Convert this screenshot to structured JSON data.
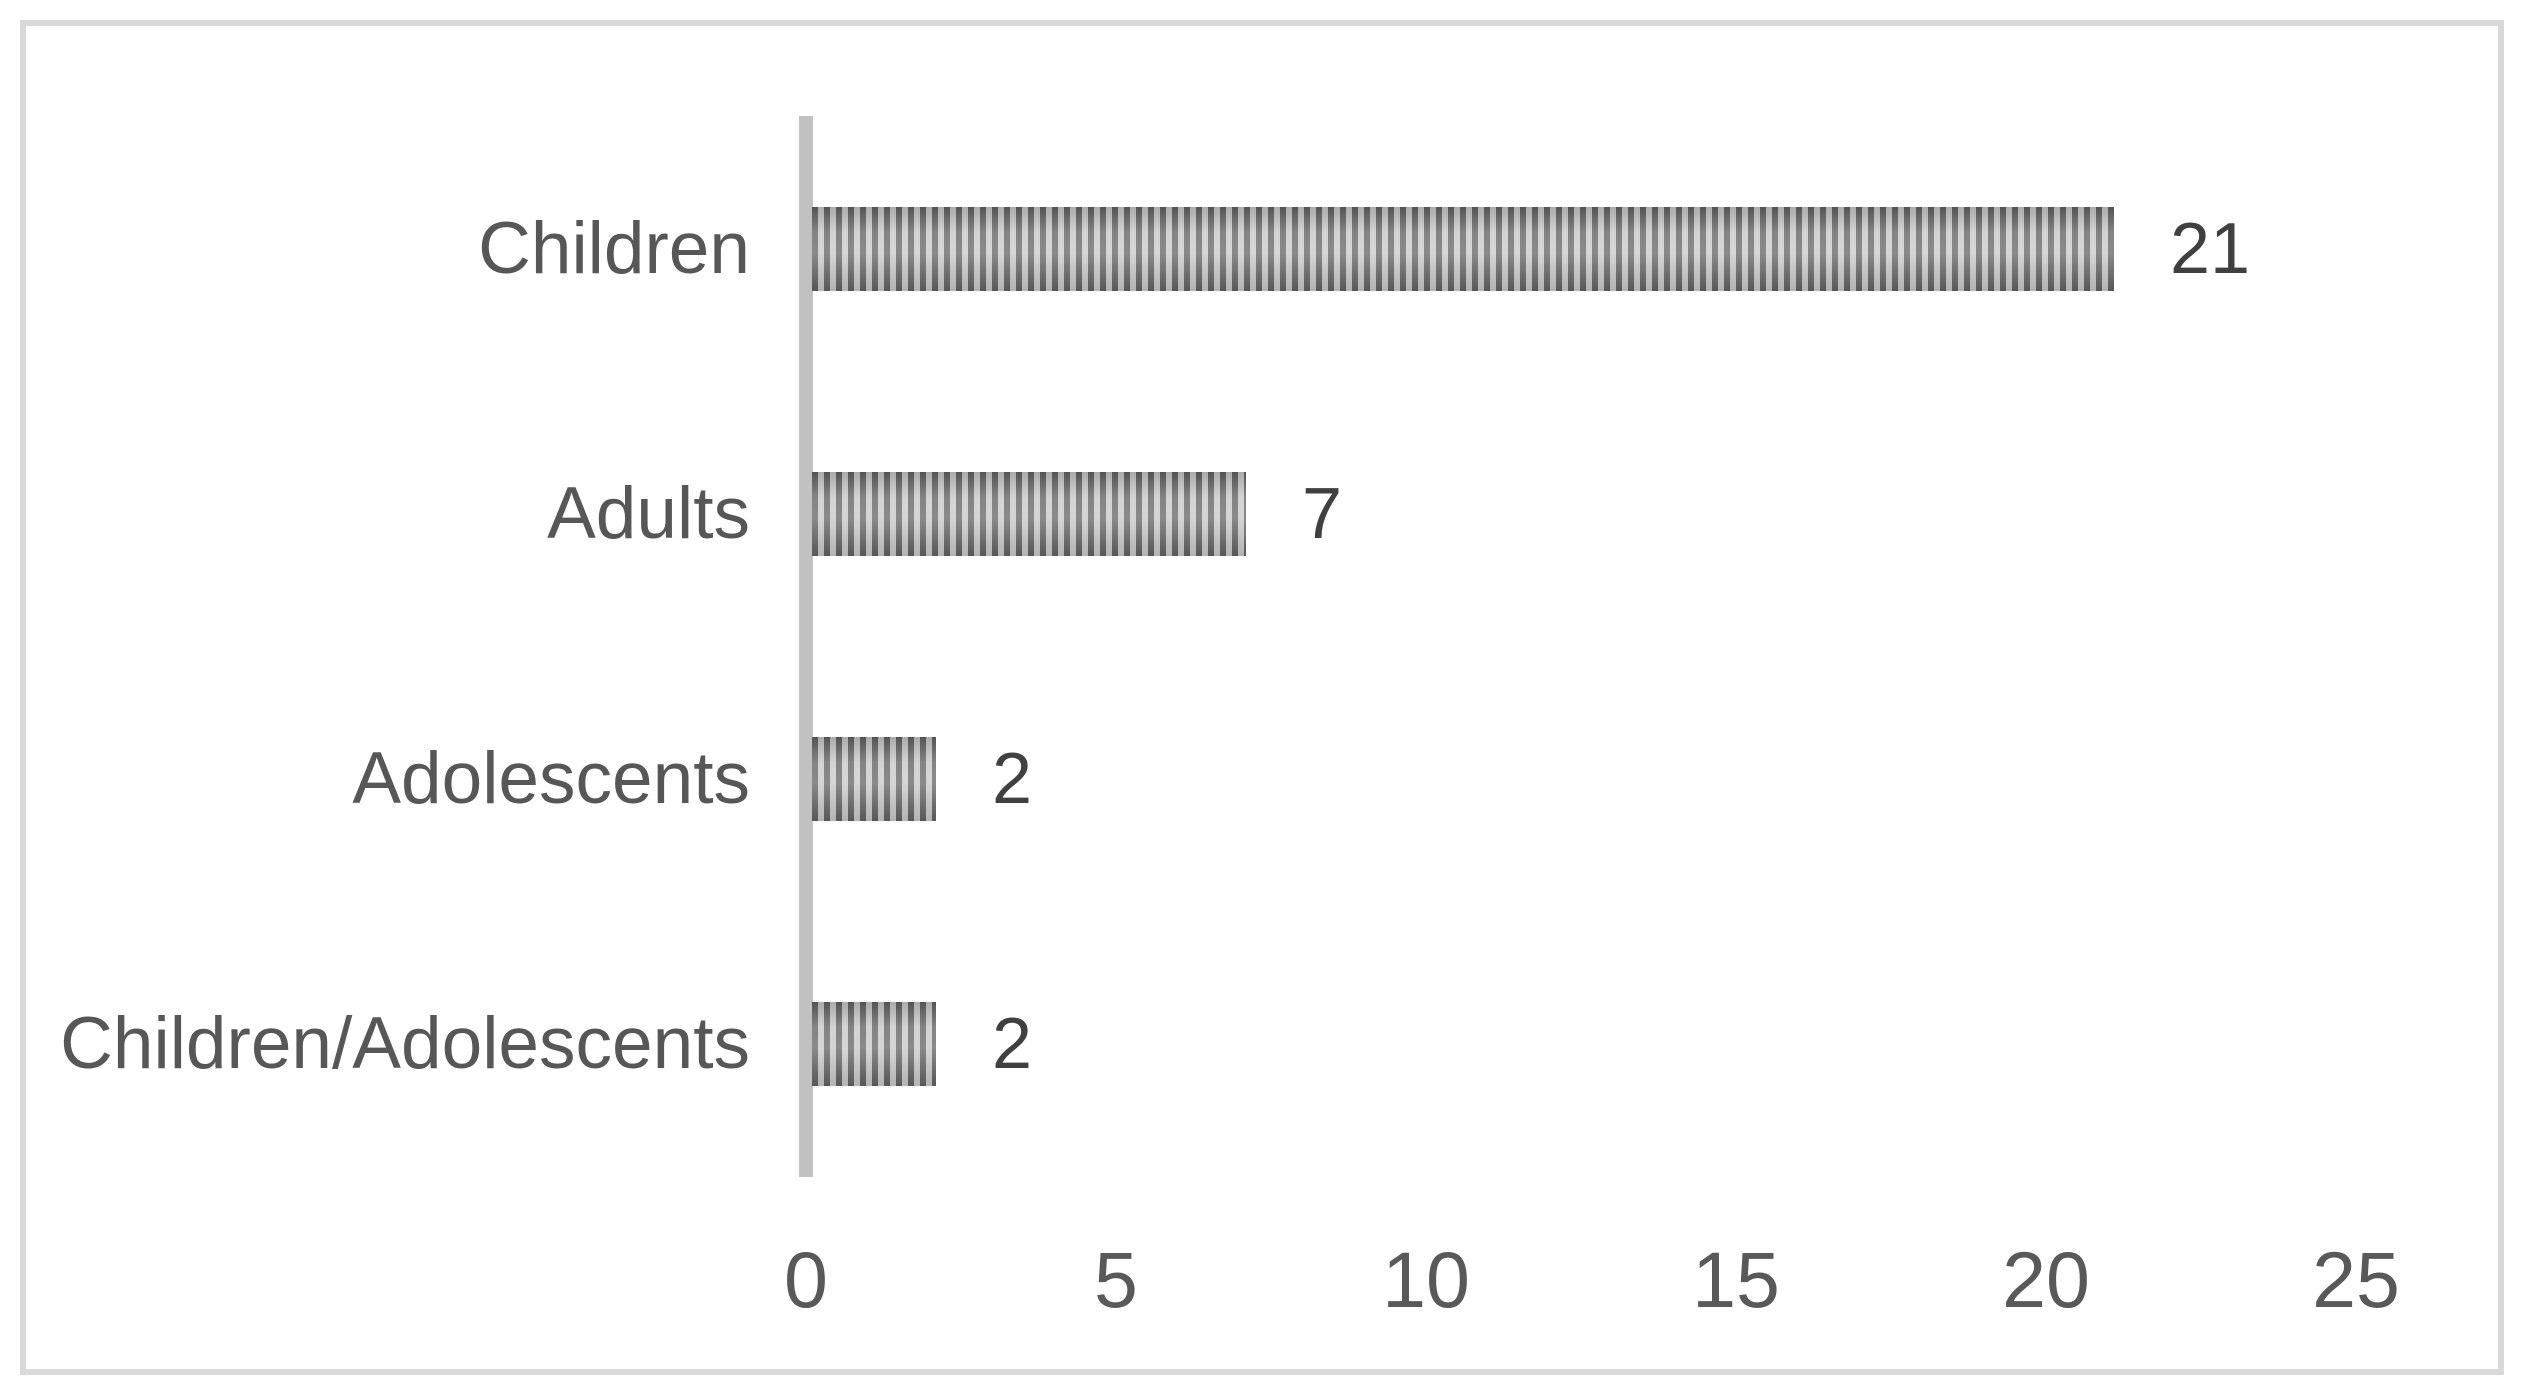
{
  "chart_data": {
    "type": "bar",
    "orientation": "horizontal",
    "title": "",
    "xlabel": "",
    "ylabel": "",
    "categories": [
      "Children",
      "Adults",
      "Adolescents",
      "Children/Adolescents"
    ],
    "values": [
      21,
      7,
      2,
      2
    ],
    "data_labels": [
      "21",
      "7",
      "2",
      "2"
    ],
    "xlim": [
      0,
      25
    ],
    "xticks": [
      "0",
      "5",
      "10",
      "15",
      "20",
      "25"
    ],
    "grid": false,
    "legend": false,
    "bar_pattern": "vertical-stripes"
  },
  "style": {
    "background": "#ffffff",
    "frame_border": "#d9d9d9",
    "axis_line": "#c1c1c1",
    "stripe_dark": "#616161",
    "stripe_light": "#c7c7c7",
    "category_color": "#575757",
    "value_color": "#404040",
    "tick_color": "#595959"
  }
}
